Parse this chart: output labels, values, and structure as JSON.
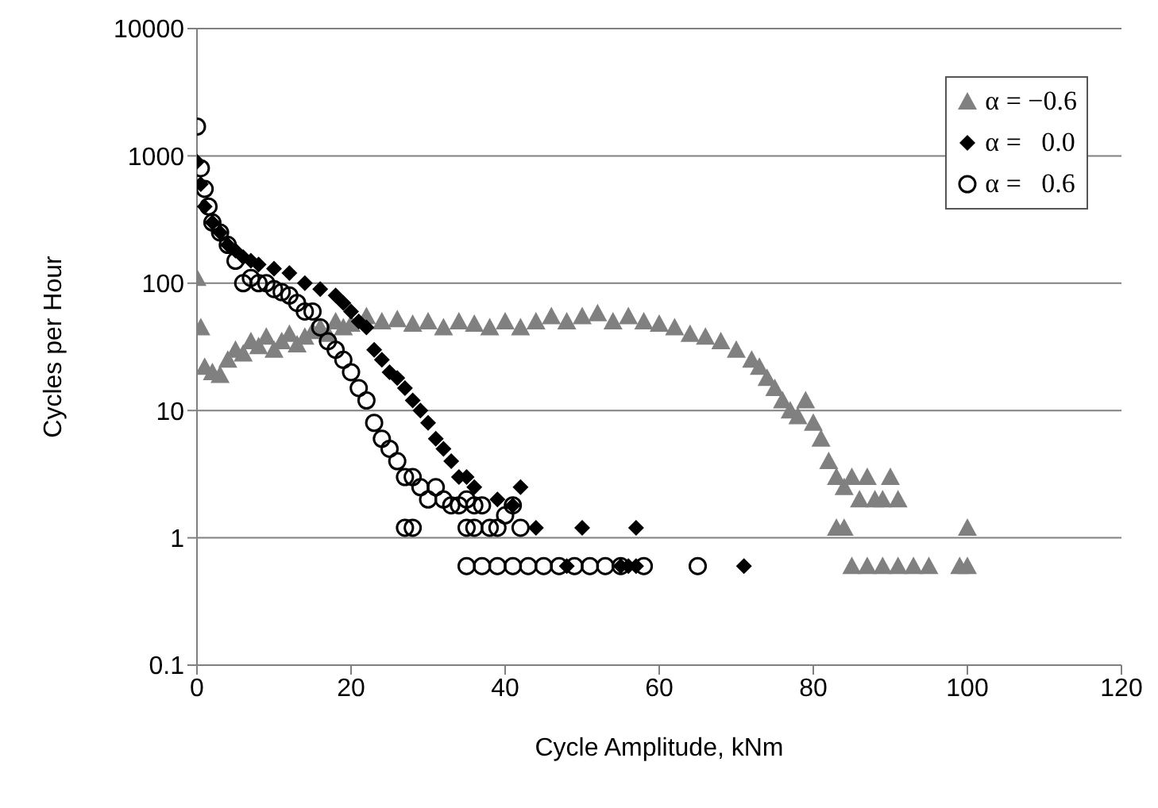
{
  "chart_data": {
    "type": "scatter",
    "xlabel": "Cycle Amplitude, kNm",
    "ylabel": "Cycles per Hour",
    "log": "y",
    "xlim": [
      0,
      120
    ],
    "xticks": [
      0,
      20,
      40,
      60,
      80,
      100,
      120
    ],
    "ylim": [
      0.1,
      10000
    ],
    "yticks": [
      0.1,
      1,
      10,
      100,
      1000,
      10000
    ],
    "grid": "y",
    "legend": "top right",
    "series": [
      {
        "name": "α = −0.6",
        "color": "#808080",
        "marker": "triangle",
        "x": [
          0,
          0.5,
          1,
          2,
          3,
          4,
          5,
          6,
          7,
          8,
          9,
          10,
          11,
          12,
          13,
          14,
          15,
          16,
          17,
          18,
          19,
          20,
          22,
          24,
          26,
          28,
          30,
          32,
          34,
          36,
          38,
          40,
          42,
          44,
          46,
          48,
          50,
          52,
          54,
          56,
          58,
          60,
          62,
          64,
          66,
          68,
          70,
          72,
          73,
          74,
          75,
          76,
          77,
          78,
          79,
          80,
          81,
          82,
          83,
          84,
          85,
          86,
          87,
          88,
          89,
          90,
          91,
          83,
          84,
          100,
          85,
          87,
          89,
          91,
          93,
          95,
          99,
          100
        ],
        "values": [
          110,
          45,
          22,
          20,
          19,
          25,
          30,
          28,
          35,
          32,
          38,
          30,
          35,
          40,
          33,
          38,
          42,
          45,
          40,
          50,
          45,
          48,
          55,
          50,
          52,
          48,
          50,
          45,
          50,
          48,
          45,
          50,
          45,
          50,
          55,
          50,
          55,
          58,
          50,
          55,
          50,
          48,
          45,
          40,
          38,
          35,
          30,
          25,
          22,
          18,
          15,
          12,
          10,
          9,
          12,
          8,
          6,
          4,
          3,
          2.5,
          3,
          2,
          3,
          2,
          2,
          3,
          2,
          1.2,
          1.2,
          1.2,
          0.6,
          0.6,
          0.6,
          0.6,
          0.6,
          0.6,
          0.6,
          0.6
        ]
      },
      {
        "name": "α =   0.0",
        "color": "#000000",
        "marker": "diamond",
        "x": [
          0,
          0.5,
          1,
          2,
          3,
          4,
          5,
          6,
          7,
          8,
          10,
          12,
          14,
          16,
          18,
          19,
          20,
          21,
          22,
          23,
          24,
          25,
          26,
          27,
          28,
          29,
          30,
          31,
          32,
          33,
          34,
          35,
          36,
          37,
          38,
          39,
          40,
          41,
          42,
          44,
          50,
          57,
          48,
          55,
          56,
          57,
          71
        ],
        "values": [
          900,
          600,
          400,
          300,
          250,
          200,
          180,
          160,
          150,
          140,
          130,
          120,
          100,
          90,
          80,
          70,
          60,
          50,
          45,
          30,
          25,
          20,
          18,
          15,
          12,
          10,
          8,
          6,
          5,
          4,
          3,
          3,
          2.5,
          null,
          null,
          2,
          null,
          1.8,
          2.5,
          1.2,
          1.2,
          1.2,
          0.6,
          0.6,
          0.6,
          0.6,
          0.6
        ]
      },
      {
        "name": "α =   0.6",
        "color": "#000000",
        "marker": "circle",
        "x": [
          0,
          0.5,
          1,
          1.5,
          2,
          3,
          4,
          5,
          6,
          7,
          8,
          9,
          10,
          11,
          12,
          13,
          14,
          15,
          16,
          17,
          18,
          19,
          20,
          21,
          22,
          23,
          24,
          25,
          26,
          27,
          28,
          29,
          30,
          31,
          32,
          33,
          34,
          35,
          36,
          37,
          38,
          39,
          40,
          41,
          42,
          27,
          28,
          35,
          36,
          35,
          37,
          39,
          41,
          43,
          45,
          47,
          49,
          51,
          53,
          55,
          58,
          65
        ],
        "values": [
          1700,
          800,
          550,
          400,
          300,
          250,
          200,
          150,
          100,
          110,
          100,
          100,
          90,
          85,
          80,
          70,
          60,
          60,
          45,
          35,
          30,
          25,
          20,
          15,
          12,
          8,
          6,
          5,
          4,
          3,
          3,
          2.5,
          2,
          2.5,
          2,
          1.8,
          1.8,
          2,
          1.8,
          1.8,
          1.2,
          1.2,
          1.5,
          1.8,
          1.2,
          1.2,
          1.2,
          1.2,
          1.2,
          0.6,
          0.6,
          0.6,
          0.6,
          0.6,
          0.6,
          0.6,
          0.6,
          0.6,
          0.6,
          0.6,
          0.6,
          0.6
        ]
      }
    ]
  }
}
